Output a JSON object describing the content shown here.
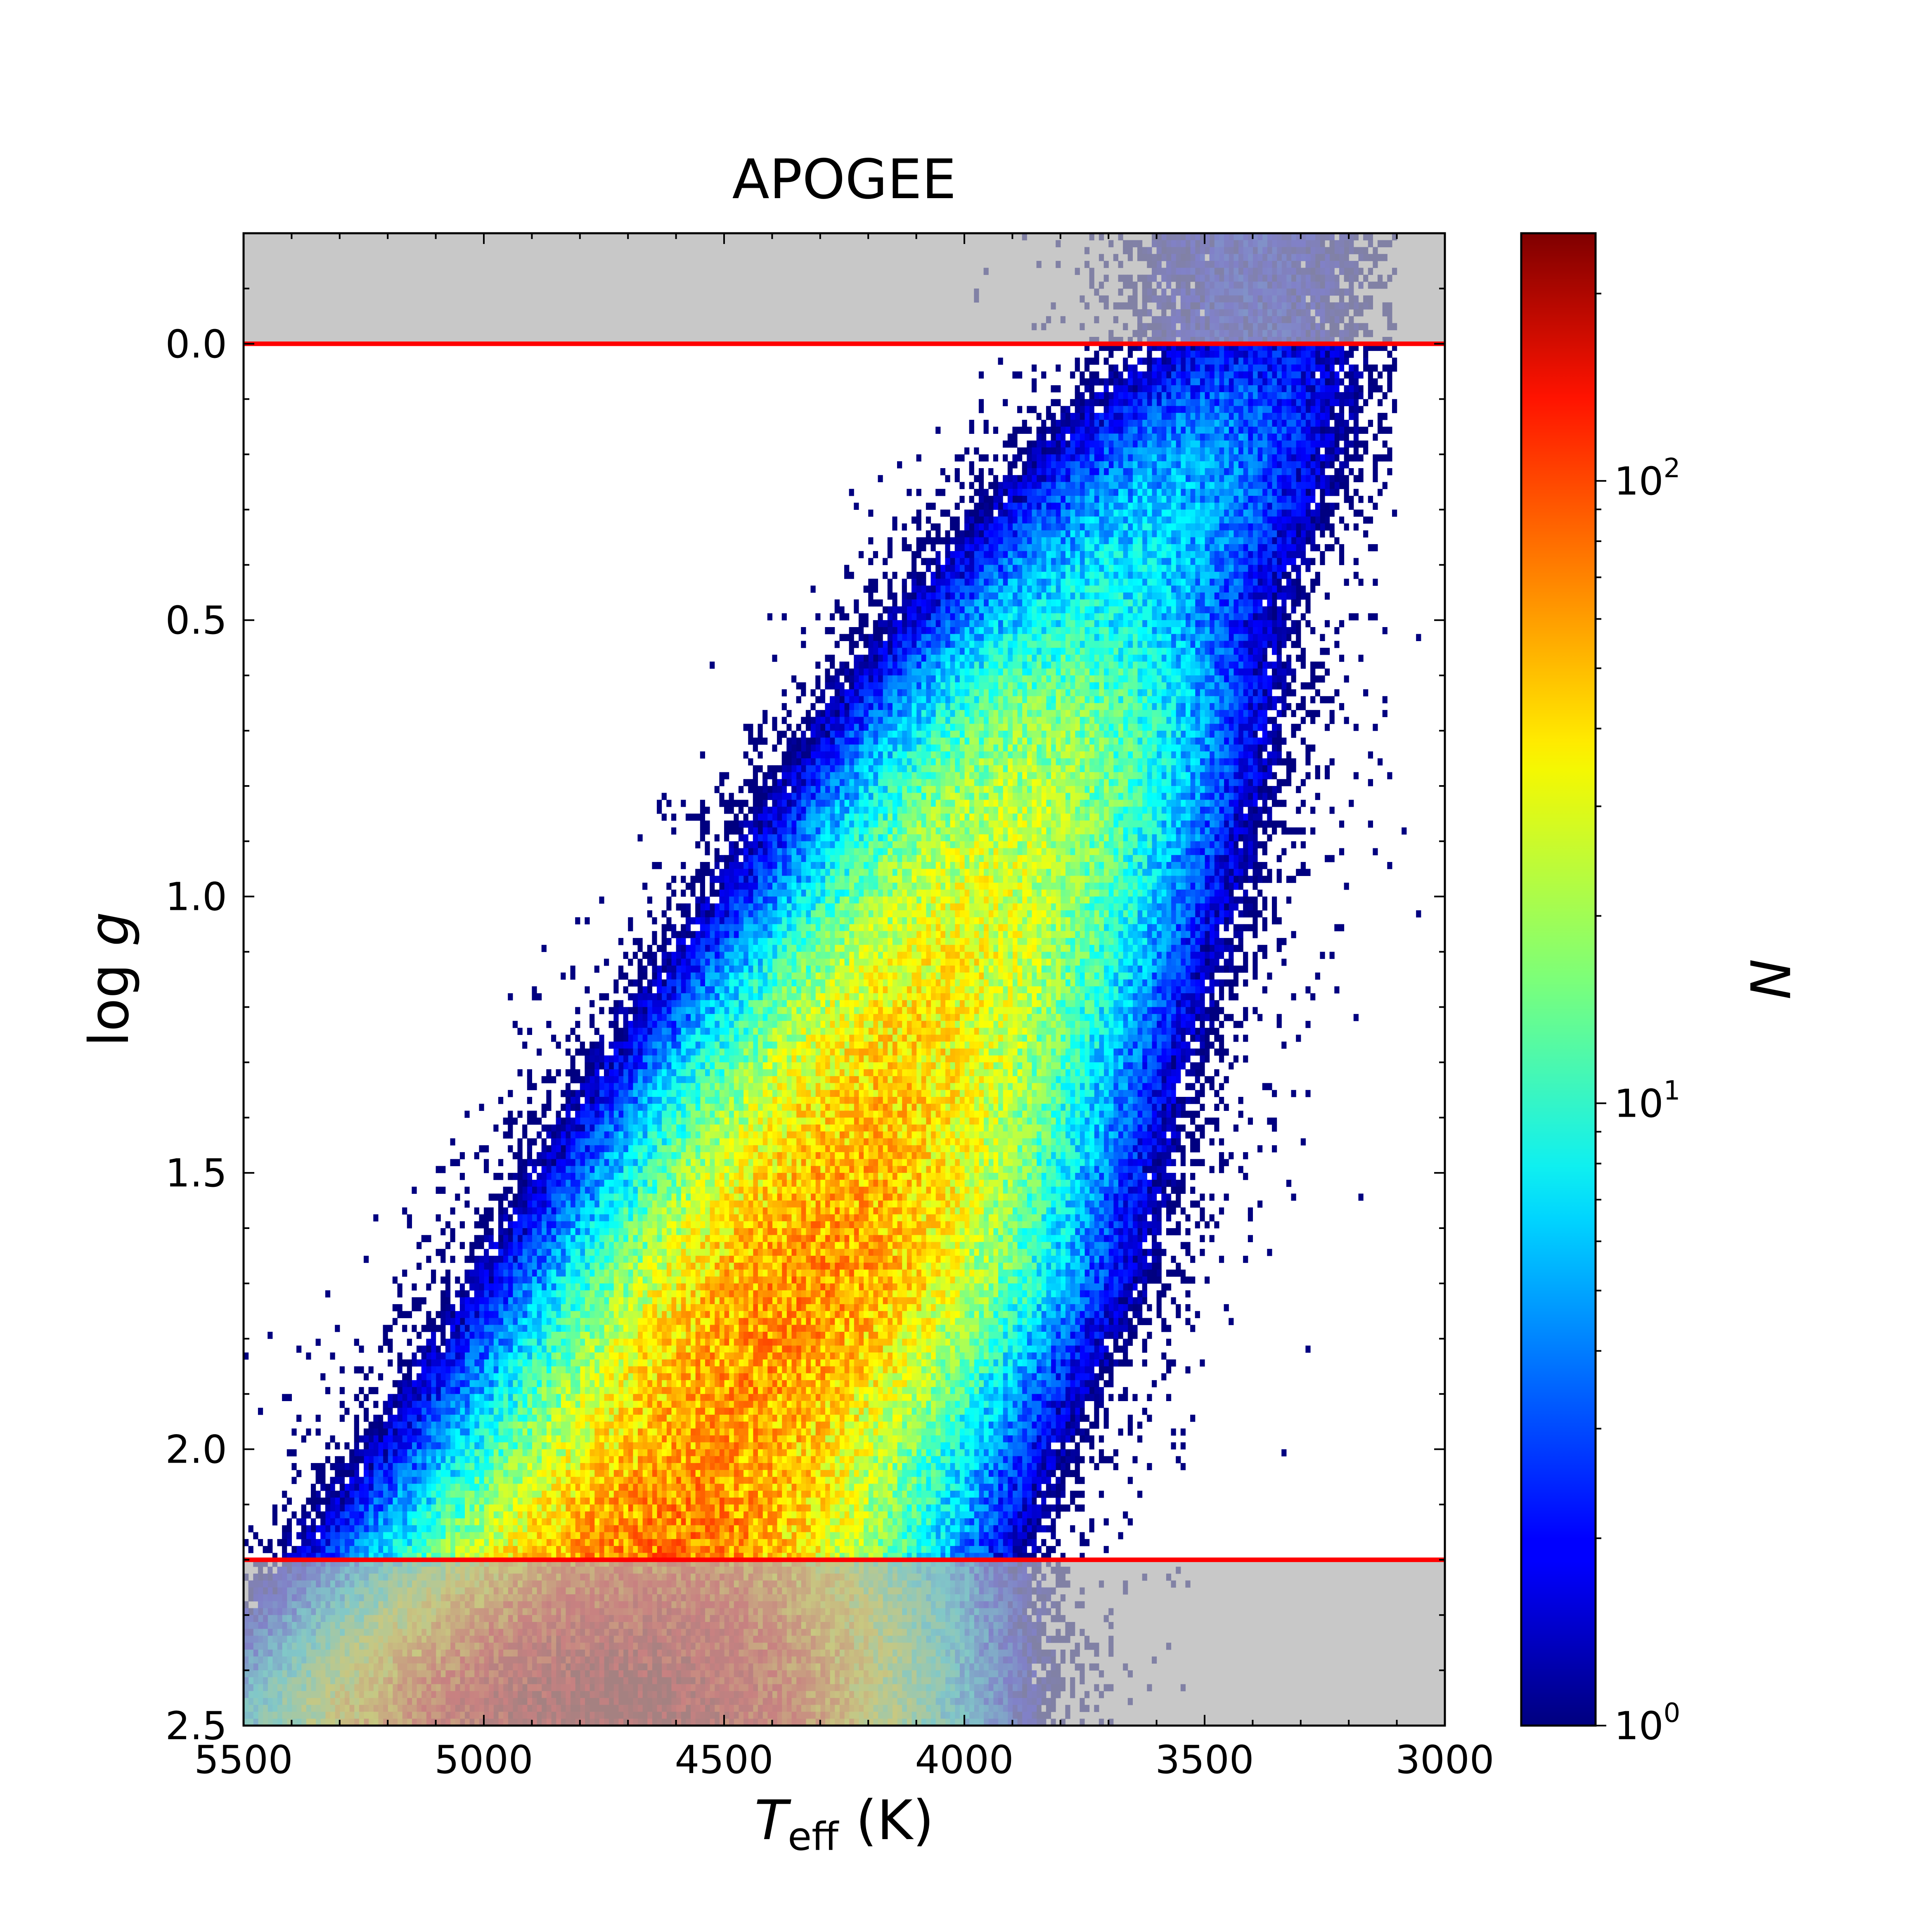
{
  "chart_data": {
    "type": "heatmap",
    "title": "APOGEE",
    "xlabel": {
      "main": "T",
      "sub": "eff",
      "unit": " (K)"
    },
    "ylabel": {
      "pre": "log ",
      "var": "g"
    },
    "xlim": [
      5500,
      3000
    ],
    "ylim": [
      2.5,
      -0.2
    ],
    "x_inverted": true,
    "y_inverted": true,
    "x_ticks": [
      5500,
      5000,
      4500,
      4000,
      3500,
      3000
    ],
    "x_tick_labels": [
      "5500",
      "5000",
      "4500",
      "4000",
      "3500",
      "3000"
    ],
    "y_ticks": [
      0.0,
      0.5,
      1.0,
      1.5,
      2.0,
      2.5
    ],
    "y_tick_labels": [
      "0.0",
      "0.5",
      "1.0",
      "1.5",
      "2.0",
      "2.5"
    ],
    "cut_lines": [
      {
        "logg": 0.0,
        "color": "#ff0000"
      },
      {
        "logg": 2.2,
        "color": "#ff0000"
      }
    ],
    "excluded_regions": [
      {
        "logg_from": -0.2,
        "logg_to": 0.0,
        "color": "#b3b3b3"
      },
      {
        "logg_from": 2.2,
        "logg_to": 2.5,
        "color": "#b3b3b3"
      }
    ],
    "colorscale": "jet",
    "colorbar": {
      "label": "N",
      "scale": "log",
      "range": [
        1,
        250
      ],
      "ticks": [
        1,
        10,
        100
      ],
      "tick_labels": [
        {
          "base": "10",
          "exp": "0"
        },
        {
          "base": "10",
          "exp": "1"
        },
        {
          "base": "10",
          "exp": "2"
        }
      ]
    },
    "density_ridge": [
      {
        "logg": 0.0,
        "teff": 3400,
        "peak_count": 2
      },
      {
        "logg": 0.5,
        "teff": 3750,
        "peak_count": 9
      },
      {
        "logg": 0.8,
        "teff": 3880,
        "peak_count": 22
      },
      {
        "logg": 1.0,
        "teff": 3980,
        "peak_count": 28
      },
      {
        "logg": 1.3,
        "teff": 4150,
        "peak_count": 40
      },
      {
        "logg": 1.7,
        "teff": 4330,
        "peak_count": 60
      },
      {
        "logg": 2.0,
        "teff": 4520,
        "peak_count": 55
      },
      {
        "logg": 2.2,
        "teff": 4640,
        "peak_count": 70
      },
      {
        "logg": 2.45,
        "teff": 4750,
        "peak_count": 220
      }
    ]
  }
}
